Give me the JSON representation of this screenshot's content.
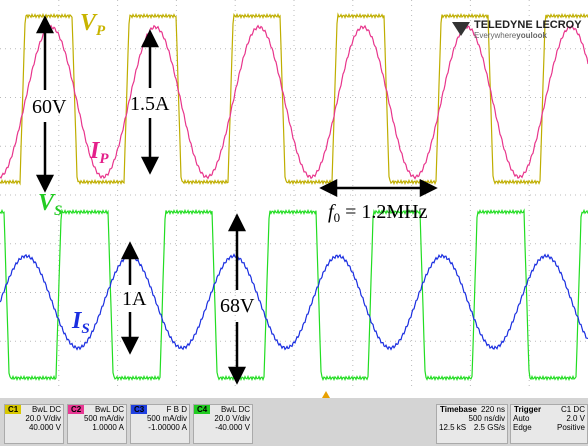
{
  "labels": {
    "vp": {
      "main": "V",
      "sub": "P"
    },
    "ip": {
      "main": "I",
      "sub": "P"
    },
    "vs": {
      "main": "V",
      "sub": "S"
    },
    "is": {
      "main": "I",
      "sub": "S"
    }
  },
  "measurements": {
    "vp_swing": "60V",
    "ip_swing": "1.5A",
    "is_swing": "1A",
    "vs_swing": "68V",
    "frequency": {
      "main": "f",
      "sub": "0",
      "rest": " = 1.2MHz"
    }
  },
  "logo": {
    "brand": "TELEDYNE LECROY",
    "tagline_a": "Everywhere",
    "tagline_b": "youlook"
  },
  "channels": [
    {
      "id": "C1",
      "coupling": "BwL DC",
      "scale": "20.0 V/div",
      "offset": "40.000 V"
    },
    {
      "id": "C2",
      "coupling": "BwL DC",
      "scale": "500 mA/div",
      "offset": "1.0000 A"
    },
    {
      "id": "C3",
      "coupling": "F B D",
      "scale": "500 mA/div",
      "offset": "-1.00000 A"
    },
    {
      "id": "C4",
      "coupling": "BwL DC",
      "scale": "20.0 V/div",
      "offset": "-40.000 V"
    }
  ],
  "timebase": {
    "title": "Timebase",
    "delay": "220 ns",
    "scale": "500 ns/div",
    "samples": "12.5 kS",
    "rate": "2.5 GS/s"
  },
  "trigger": {
    "title": "Trigger",
    "source": "C1 DC",
    "mode": "Auto",
    "level": "2.0 V",
    "type": "Edge",
    "slope": "Positive"
  }
}
